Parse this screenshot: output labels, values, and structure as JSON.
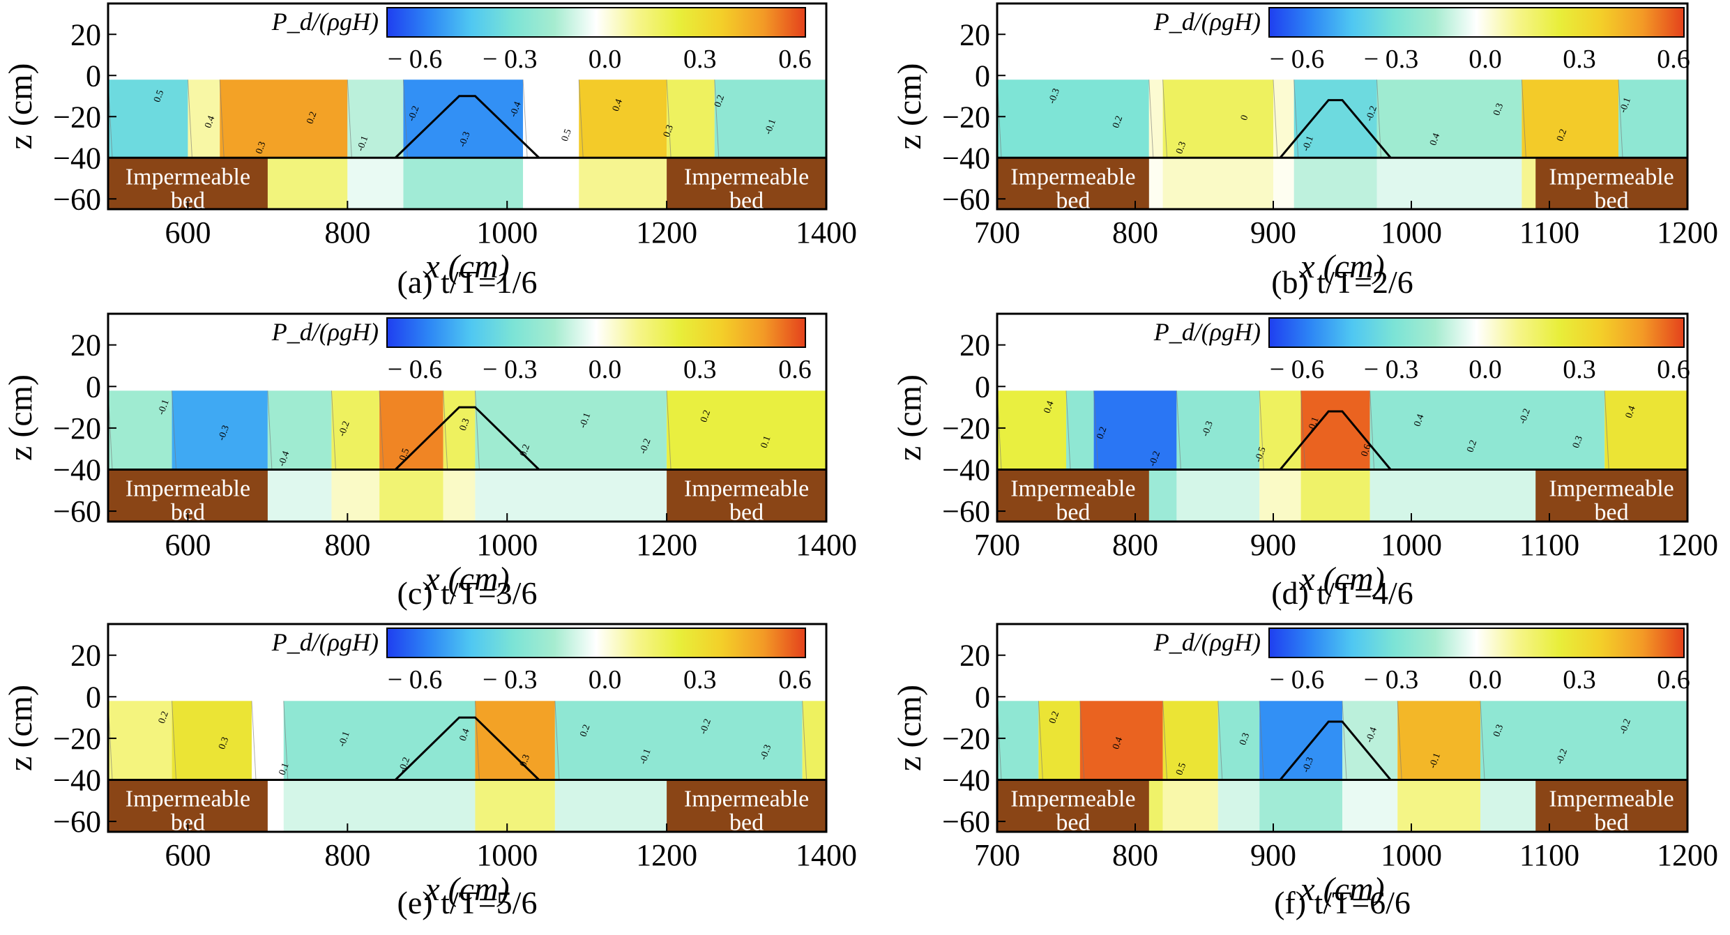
{
  "figure": {
    "colorbar": {
      "label": "P_d/(ρgH)",
      "ticks": [
        "− 0.6",
        "− 0.3",
        "0.0",
        "0.3",
        "0.6"
      ],
      "range": [
        -0.65,
        0.65
      ],
      "colors": [
        "#1f3ff0",
        "#2d86f5",
        "#4fc7f2",
        "#7be3d6",
        "#a6ecd0",
        "#ffffff",
        "#f6f58a",
        "#e8ee3a",
        "#f3cf29",
        "#f39a26",
        "#e4411c"
      ]
    },
    "bed_label_line1": "Impermeable",
    "bed_label_line2": "bed",
    "xlabel": "x (cm)",
    "ylabel": "z (cm)",
    "colors": {
      "bed": "#8a4516",
      "water": "#ffffff"
    }
  },
  "chart_data": [
    {
      "type": "heatmap",
      "caption": "(a) t/T=1/6",
      "xlim": [
        500,
        1400
      ],
      "ylim": [
        -65,
        35
      ],
      "xticks": [
        "600",
        "800",
        "1000",
        "1200",
        "1400"
      ],
      "yticks": [
        "20",
        "0",
        "−20",
        "−40",
        "−60"
      ],
      "impermeable_bed": [
        [
          500,
          700
        ],
        [
          1200,
          1400
        ]
      ],
      "breakwater": {
        "toe_left": 860,
        "crest_left": 940,
        "crest_right": 960,
        "toe_right": 1040,
        "crest_z": -10,
        "toe_z": -40
      },
      "regions": [
        {
          "x0": 500,
          "x1": 600,
          "value": -0.3
        },
        {
          "x0": 600,
          "x1": 640,
          "value": 0.1
        },
        {
          "x0": 640,
          "x1": 800,
          "value": 0.5
        },
        {
          "x0": 800,
          "x1": 870,
          "value": -0.1
        },
        {
          "x0": 870,
          "x1": 1020,
          "value": -0.5
        },
        {
          "x0": 1020,
          "x1": 1090,
          "value": 0.0
        },
        {
          "x0": 1090,
          "x1": 1200,
          "value": 0.4
        },
        {
          "x0": 1200,
          "x1": 1260,
          "value": 0.2
        },
        {
          "x0": 1260,
          "x1": 1400,
          "value": -0.2
        }
      ],
      "contour_labels": [
        "0.5",
        "0.4",
        "0.3",
        "0.2",
        "-0.1",
        "-0.2",
        "-0.3",
        "-0.4",
        "0.5",
        "0.4",
        "0.3",
        "0.2",
        "-0.1"
      ]
    },
    {
      "type": "heatmap",
      "caption": "(b) t/T=2/6",
      "xlim": [
        700,
        1200
      ],
      "ylim": [
        -65,
        35
      ],
      "xticks": [
        "700",
        "800",
        "900",
        "1000",
        "1100",
        "1200"
      ],
      "yticks": [
        "20",
        "0",
        "−20",
        "−40",
        "−60"
      ],
      "impermeable_bed": [
        [
          700,
          810
        ],
        [
          1090,
          1200
        ]
      ],
      "breakwater": {
        "toe_left": 905,
        "crest_left": 940,
        "crest_right": 950,
        "toe_right": 985,
        "crest_z": -12,
        "toe_z": -40
      },
      "regions": [
        {
          "x0": 700,
          "x1": 810,
          "value": -0.25
        },
        {
          "x0": 810,
          "x1": 820,
          "value": 0.05
        },
        {
          "x0": 820,
          "x1": 900,
          "value": 0.2
        },
        {
          "x0": 900,
          "x1": 915,
          "value": 0.05
        },
        {
          "x0": 915,
          "x1": 975,
          "value": -0.3
        },
        {
          "x0": 975,
          "x1": 1080,
          "value": -0.15
        },
        {
          "x0": 1080,
          "x1": 1150,
          "value": 0.4
        },
        {
          "x0": 1150,
          "x1": 1200,
          "value": -0.2
        }
      ],
      "contour_labels": [
        "-0.3",
        "0.2",
        "0.3",
        "0",
        "-0.1",
        "-0.2",
        "0.4",
        "0.3",
        "0.2",
        "-0.1"
      ]
    },
    {
      "type": "heatmap",
      "caption": "(c) t/T=3/6",
      "xlim": [
        500,
        1400
      ],
      "ylim": [
        -65,
        35
      ],
      "xticks": [
        "600",
        "800",
        "1000",
        "1200",
        "1400"
      ],
      "yticks": [
        "20",
        "0",
        "−20",
        "−40",
        "−60"
      ],
      "impermeable_bed": [
        [
          500,
          700
        ],
        [
          1200,
          1400
        ]
      ],
      "breakwater": {
        "toe_left": 860,
        "crest_left": 940,
        "crest_right": 960,
        "toe_right": 1040,
        "crest_z": -10,
        "toe_z": -40
      },
      "regions": [
        {
          "x0": 500,
          "x1": 580,
          "value": -0.15
        },
        {
          "x0": 580,
          "x1": 700,
          "value": -0.45
        },
        {
          "x0": 700,
          "x1": 780,
          "value": -0.15
        },
        {
          "x0": 780,
          "x1": 840,
          "value": 0.2
        },
        {
          "x0": 840,
          "x1": 920,
          "value": 0.55
        },
        {
          "x0": 920,
          "x1": 960,
          "value": 0.2
        },
        {
          "x0": 960,
          "x1": 1200,
          "value": -0.15
        },
        {
          "x0": 1200,
          "x1": 1400,
          "value": 0.25
        }
      ],
      "contour_labels": [
        "-0.1",
        "-0.3",
        "-0.4",
        "-0.2",
        "0.5",
        "0.3",
        "0.2",
        "-0.1",
        "-0.2",
        "0.2",
        "0.1"
      ]
    },
    {
      "type": "heatmap",
      "caption": "(d) t/T=4/6",
      "xlim": [
        700,
        1200
      ],
      "ylim": [
        -65,
        35
      ],
      "xticks": [
        "700",
        "800",
        "900",
        "1000",
        "1100",
        "1200"
      ],
      "yticks": [
        "20",
        "0",
        "−20",
        "−40",
        "−60"
      ],
      "impermeable_bed": [
        [
          700,
          810
        ],
        [
          1090,
          1200
        ]
      ],
      "breakwater": {
        "toe_left": 905,
        "crest_left": 940,
        "crest_right": 950,
        "toe_right": 985,
        "crest_z": -12,
        "toe_z": -40
      },
      "regions": [
        {
          "x0": 700,
          "x1": 750,
          "value": 0.25
        },
        {
          "x0": 750,
          "x1": 770,
          "value": -0.2
        },
        {
          "x0": 770,
          "x1": 830,
          "value": -0.55
        },
        {
          "x0": 830,
          "x1": 890,
          "value": -0.2
        },
        {
          "x0": 890,
          "x1": 920,
          "value": 0.2
        },
        {
          "x0": 920,
          "x1": 970,
          "value": 0.6
        },
        {
          "x0": 970,
          "x1": 1140,
          "value": -0.2
        },
        {
          "x0": 1140,
          "x1": 1200,
          "value": 0.3
        }
      ],
      "contour_labels": [
        "0.4",
        "0.2",
        "-0.2",
        "-0.3",
        "-0.5",
        "-0.1",
        "0.6",
        "0.4",
        "0.2",
        "-0.2",
        "0.3",
        "0.4"
      ]
    },
    {
      "type": "heatmap",
      "caption": "(e) t/T=5/6",
      "xlim": [
        500,
        1400
      ],
      "ylim": [
        -65,
        35
      ],
      "xticks": [
        "600",
        "800",
        "1000",
        "1200",
        "1400"
      ],
      "yticks": [
        "20",
        "0",
        "−20",
        "−40",
        "−60"
      ],
      "impermeable_bed": [
        [
          500,
          700
        ],
        [
          1200,
          1400
        ]
      ],
      "breakwater": {
        "toe_left": 860,
        "crest_left": 940,
        "crest_right": 960,
        "toe_right": 1040,
        "crest_z": -10,
        "toe_z": -40
      },
      "regions": [
        {
          "x0": 500,
          "x1": 580,
          "value": 0.15
        },
        {
          "x0": 580,
          "x1": 680,
          "value": 0.3
        },
        {
          "x0": 680,
          "x1": 720,
          "value": 0.0
        },
        {
          "x0": 720,
          "x1": 960,
          "value": -0.2
        },
        {
          "x0": 960,
          "x1": 1060,
          "value": 0.5
        },
        {
          "x0": 1060,
          "x1": 1370,
          "value": -0.2
        },
        {
          "x0": 1370,
          "x1": 1400,
          "value": 0.2
        }
      ],
      "contour_labels": [
        "0.2",
        "0.3",
        "0.1",
        "-0.1",
        "-0.2",
        "0.4",
        "0.3",
        "0.2",
        "-0.1",
        "-0.2",
        "-0.3"
      ]
    },
    {
      "type": "heatmap",
      "caption": "(f) t/T=6/6",
      "xlim": [
        700,
        1200
      ],
      "ylim": [
        -65,
        35
      ],
      "xticks": [
        "700",
        "800",
        "900",
        "1000",
        "1100",
        "1200"
      ],
      "yticks": [
        "20",
        "0",
        "−20",
        "−40",
        "−60"
      ],
      "impermeable_bed": [
        [
          700,
          810
        ],
        [
          1090,
          1200
        ]
      ],
      "breakwater": {
        "toe_left": 905,
        "crest_left": 940,
        "crest_right": 950,
        "toe_right": 985,
        "crest_z": -12,
        "toe_z": -40
      },
      "regions": [
        {
          "x0": 700,
          "x1": 730,
          "value": -0.2
        },
        {
          "x0": 730,
          "x1": 760,
          "value": 0.3
        },
        {
          "x0": 760,
          "x1": 820,
          "value": 0.6
        },
        {
          "x0": 820,
          "x1": 860,
          "value": 0.3
        },
        {
          "x0": 860,
          "x1": 890,
          "value": -0.2
        },
        {
          "x0": 890,
          "x1": 950,
          "value": -0.5
        },
        {
          "x0": 950,
          "x1": 990,
          "value": -0.1
        },
        {
          "x0": 990,
          "x1": 1050,
          "value": 0.45
        },
        {
          "x0": 1050,
          "x1": 1200,
          "value": -0.2
        }
      ],
      "contour_labels": [
        "0.2",
        "0.4",
        "0.5",
        "0.3",
        "-0.3",
        "-0.4",
        "-0.1",
        "0.3",
        "-0.2",
        "-0.2"
      ]
    }
  ]
}
